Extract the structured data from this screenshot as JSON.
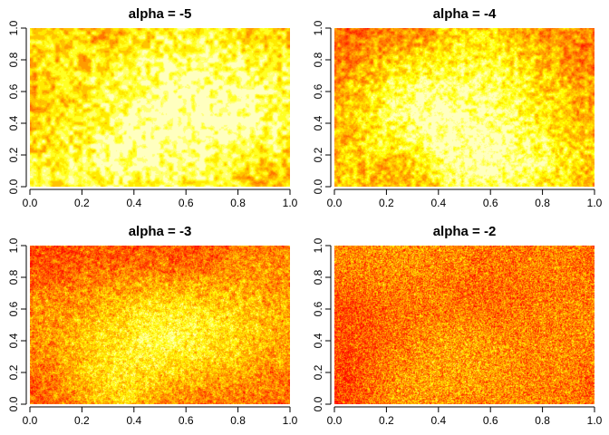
{
  "chart_data": [
    {
      "type": "heatmap",
      "title": "alpha = -5",
      "xlabel": "",
      "ylabel": "",
      "xlim": [
        0,
        1
      ],
      "ylim": [
        0,
        1
      ],
      "x_ticks": [
        "0.0",
        "0.2",
        "0.4",
        "0.6",
        "0.8",
        "1.0"
      ],
      "y_ticks": [
        "0.0",
        "0.2",
        "0.4",
        "0.6",
        "0.8",
        "1.0"
      ],
      "colormap": "heat",
      "grid": false,
      "texture": "smooth contour bands; bright yellow-white peak centred near (0.55, 0.38); red at left edge and upper right"
    },
    {
      "type": "heatmap",
      "title": "alpha = -4",
      "xlabel": "",
      "ylabel": "",
      "xlim": [
        0,
        1
      ],
      "ylim": [
        0,
        1
      ],
      "x_ticks": [
        "0.0",
        "0.2",
        "0.4",
        "0.6",
        "0.8",
        "1.0"
      ],
      "y_ticks": [
        "0.0",
        "0.2",
        "0.4",
        "0.6",
        "0.8",
        "1.0"
      ],
      "colormap": "heat",
      "grid": false,
      "texture": "slightly rough; bright peak near (0.55, 0.38)"
    },
    {
      "type": "heatmap",
      "title": "alpha = -3",
      "xlabel": "",
      "ylabel": "",
      "xlim": [
        0,
        1
      ],
      "ylim": [
        0,
        1
      ],
      "x_ticks": [
        "0.0",
        "0.2",
        "0.4",
        "0.6",
        "0.8",
        "1.0"
      ],
      "y_ticks": [
        "0.0",
        "0.2",
        "0.4",
        "0.6",
        "0.8",
        "1.0"
      ],
      "colormap": "heat",
      "grid": false,
      "texture": "noisy mottled; bright spot near (0.52, 0.35)"
    },
    {
      "type": "heatmap",
      "title": "alpha = -2",
      "xlabel": "",
      "ylabel": "",
      "xlim": [
        0,
        1
      ],
      "ylim": [
        0,
        1
      ],
      "x_ticks": [
        "0.0",
        "0.2",
        "0.4",
        "0.6",
        "0.8",
        "1.0"
      ],
      "y_ticks": [
        "0.0",
        "0.2",
        "0.4",
        "0.6",
        "0.8",
        "1.0"
      ],
      "colormap": "heat",
      "grid": false,
      "texture": "fine grain noise, mostly orange-yellow"
    }
  ],
  "colors": {
    "heat": [
      "#FF0000",
      "#FF2000",
      "#FF4000",
      "#FF6000",
      "#FF8000",
      "#FFA000",
      "#FFBF00",
      "#FFDF00",
      "#FFFF00",
      "#FFFF40",
      "#FFFF80",
      "#FFFFBF"
    ]
  }
}
